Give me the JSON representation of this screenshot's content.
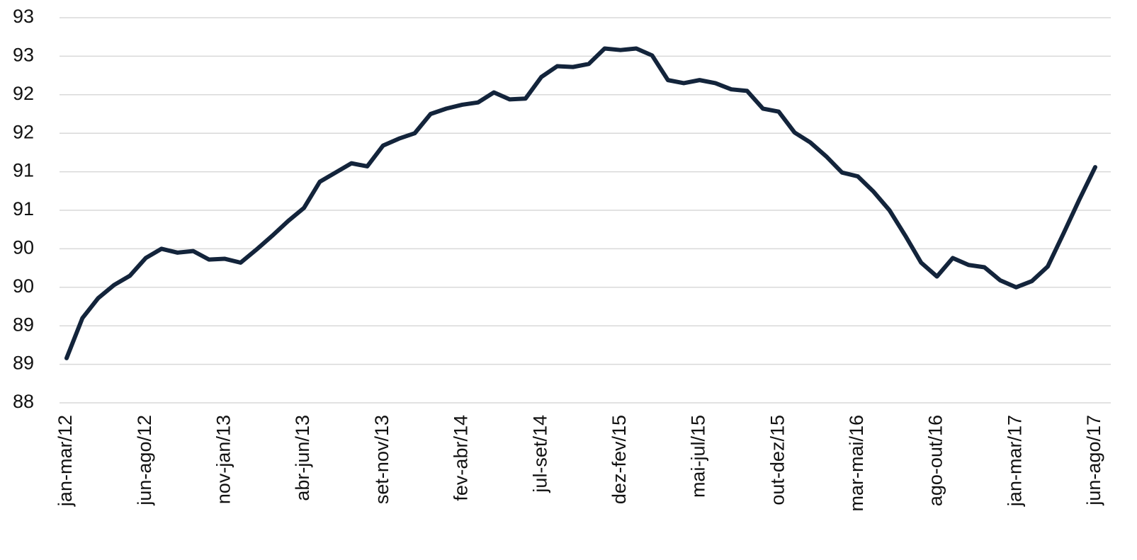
{
  "chart_data": {
    "type": "line",
    "categories": [
      "jan-mar/12",
      null,
      null,
      null,
      null,
      "jun-ago/12",
      null,
      null,
      null,
      null,
      "nov-jan/13",
      null,
      null,
      null,
      null,
      "abr-jun/13",
      null,
      null,
      null,
      null,
      "set-nov/13",
      null,
      null,
      null,
      null,
      "fev-abr/14",
      null,
      null,
      null,
      null,
      "jul-set/14",
      null,
      null,
      null,
      null,
      "dez-fev/15",
      null,
      null,
      null,
      null,
      "mai-jul/15",
      null,
      null,
      null,
      null,
      "out-dez/15",
      null,
      null,
      null,
      null,
      "mar-mai/16",
      null,
      null,
      null,
      null,
      "ago-out/16",
      null,
      null,
      null,
      null,
      "jan-mar/17",
      null,
      null,
      null,
      null,
      "jun-ago/17"
    ],
    "values": [
      88.58,
      89.1,
      89.36,
      89.53,
      89.65,
      89.88,
      90.0,
      89.95,
      89.97,
      89.86,
      89.87,
      89.82,
      89.99,
      90.17,
      90.36,
      90.53,
      90.87,
      90.99,
      91.11,
      91.07,
      91.34,
      91.43,
      91.5,
      91.75,
      91.82,
      91.87,
      91.9,
      92.03,
      91.94,
      91.95,
      92.23,
      92.37,
      92.36,
      92.4,
      92.6,
      92.58,
      92.6,
      92.51,
      92.19,
      92.15,
      92.19,
      92.15,
      92.07,
      92.05,
      91.82,
      91.78,
      91.51,
      91.38,
      91.2,
      90.99,
      90.94,
      90.74,
      90.5,
      90.17,
      89.82,
      89.64,
      89.88,
      89.79,
      89.76,
      89.59,
      89.5,
      89.58,
      89.77,
      90.2,
      90.64,
      91.06
    ],
    "color": "#13243b",
    "ylim": [
      88,
      93
    ],
    "yticks": [
      88,
      {
        "value": 88.5,
        "label": "89"
      },
      89,
      {
        "value": 89.5,
        "label": "90"
      },
      90,
      {
        "value": 90.5,
        "label": "91"
      },
      91,
      {
        "value": 91.5,
        "label": "92"
      },
      92,
      {
        "value": 92.5,
        "label": "93"
      },
      93
    ],
    "grid": true
  }
}
